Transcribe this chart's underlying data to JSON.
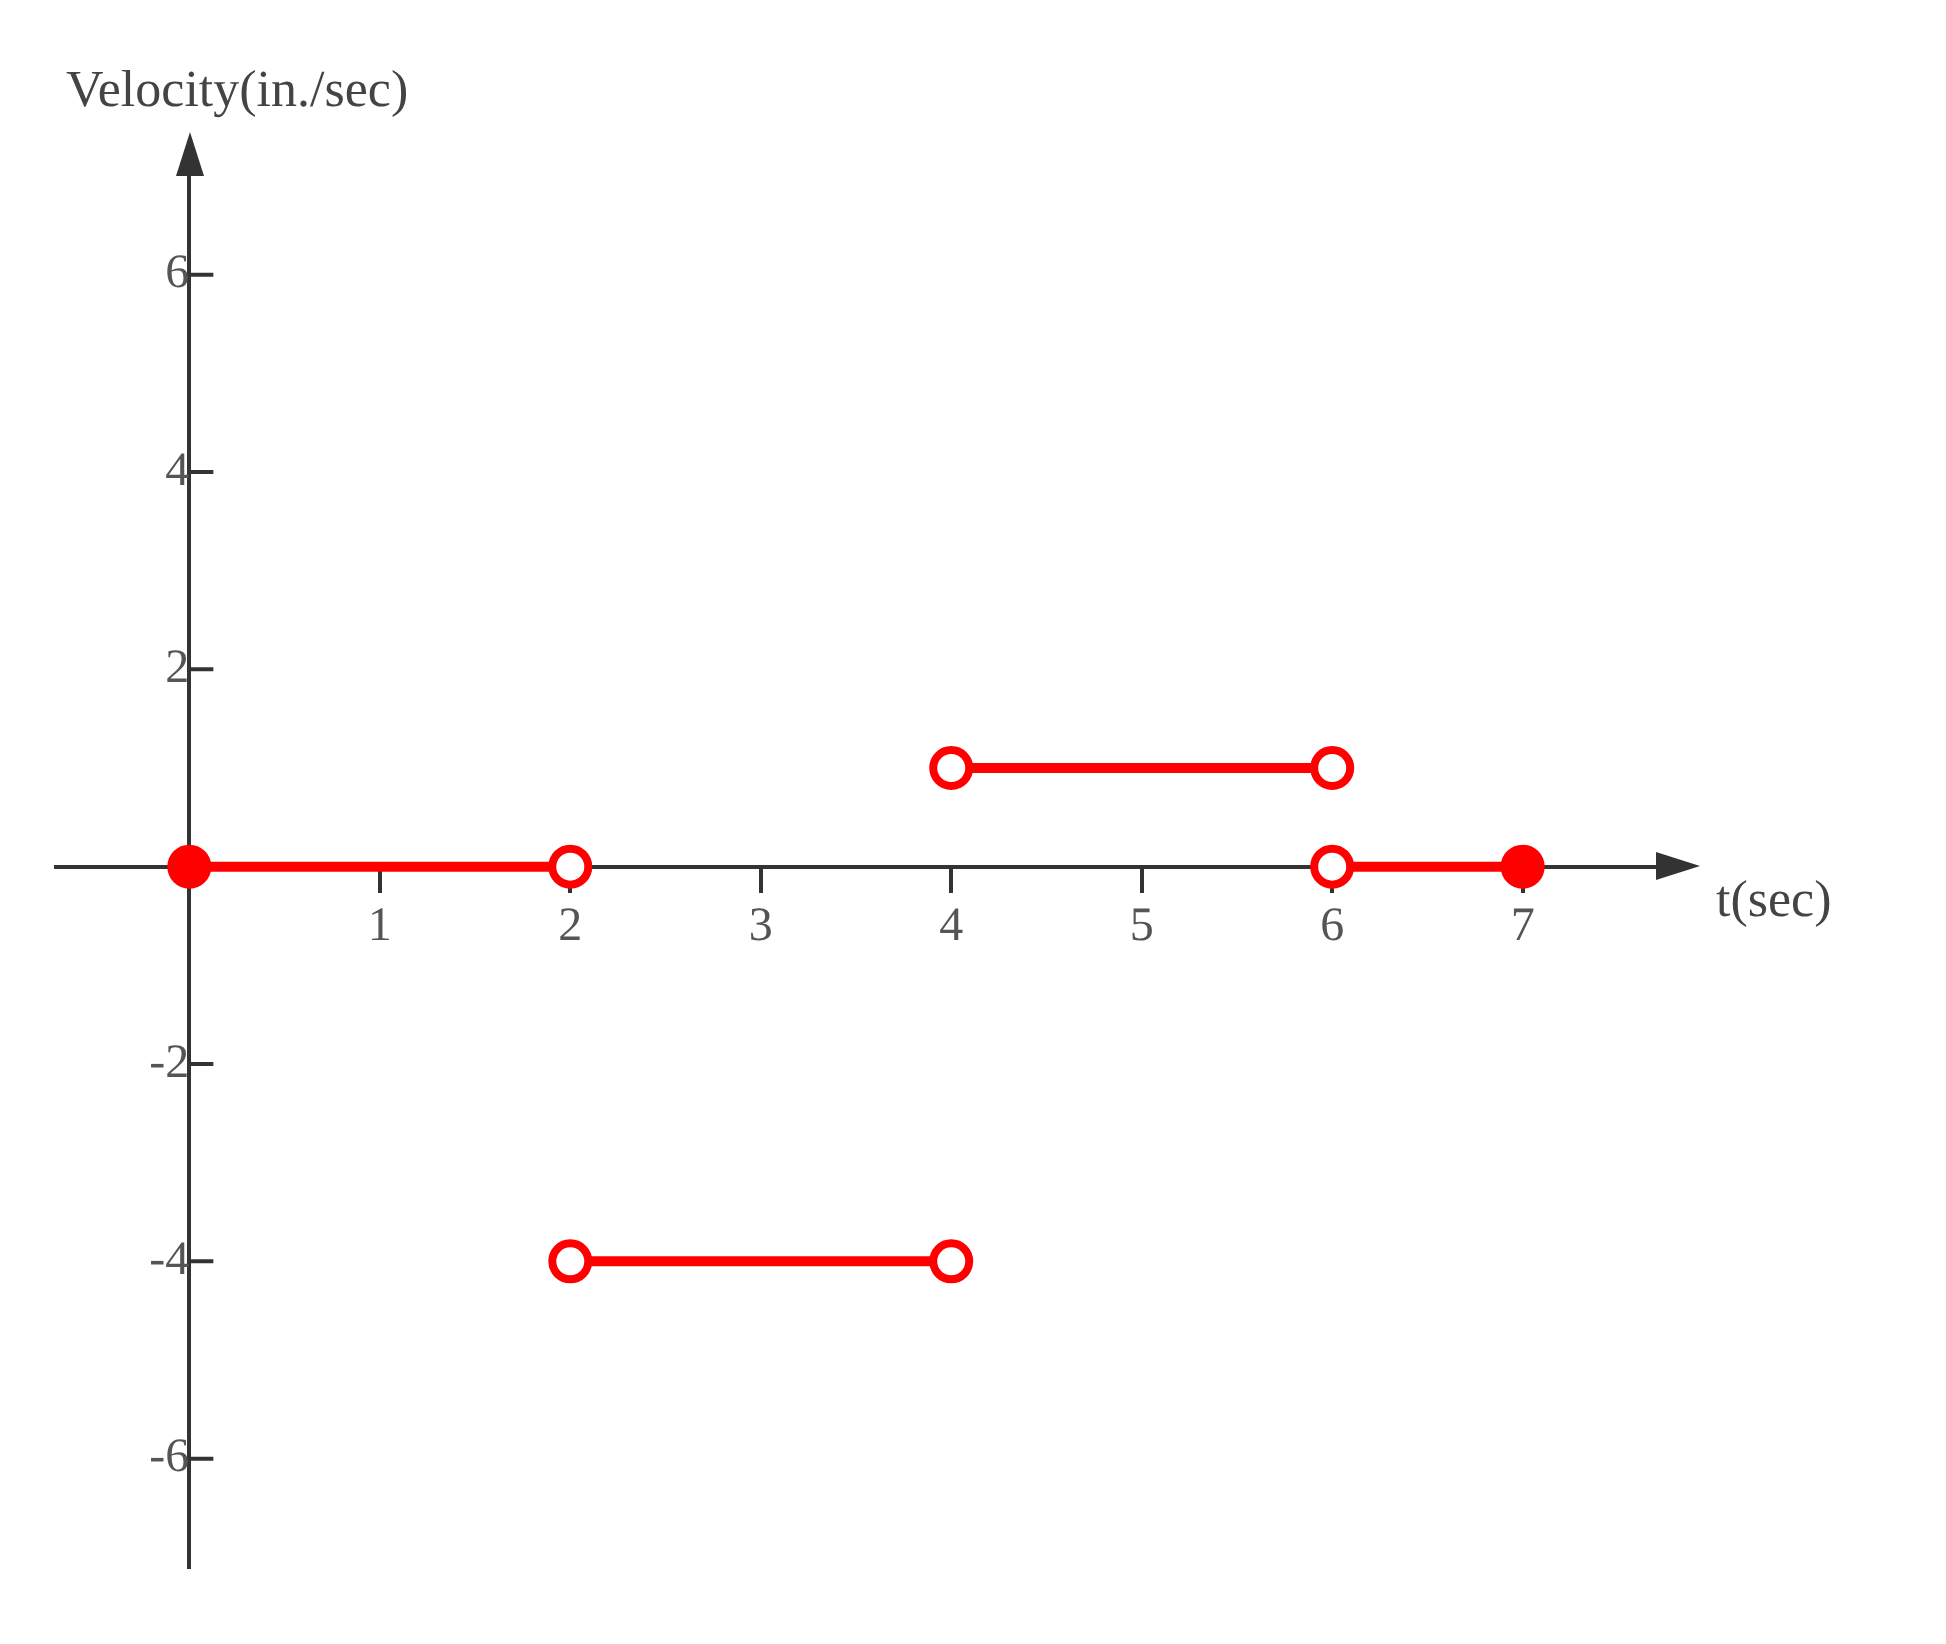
{
  "chart_data": {
    "type": "line",
    "xlabel": "t(sec)",
    "ylabel": "Velocity(in./sec)",
    "xlim": [
      -0.7,
      7.7
    ],
    "xticks": [
      1,
      2,
      3,
      4,
      5,
      6,
      7
    ],
    "ylim": [
      -7.1,
      7
    ],
    "yticks": [
      -6,
      -4,
      -2,
      2,
      4,
      6
    ],
    "grid": false,
    "legend": false,
    "marker": "circle",
    "line_style": "solid",
    "series": [
      {
        "color": "#ff0000",
        "x": [
          0,
          2
        ],
        "values": [
          0,
          0
        ],
        "colors": [
          "#ff0000",
          "#ffffff"
        ]
      },
      {
        "color": "#ff0000",
        "x": [
          2,
          4
        ],
        "values": [
          -4,
          -4
        ],
        "colors": [
          "#ffffff",
          "#ffffff"
        ]
      },
      {
        "color": "#ff0000",
        "x": [
          4,
          6
        ],
        "values": [
          1,
          1
        ],
        "colors": [
          "#ffffff",
          "#ffffff"
        ]
      },
      {
        "color": "#ff0000",
        "x": [
          6,
          7
        ],
        "values": [
          0,
          0
        ],
        "colors": [
          "#ffffff",
          "#ff0000"
        ]
      }
    ]
  }
}
